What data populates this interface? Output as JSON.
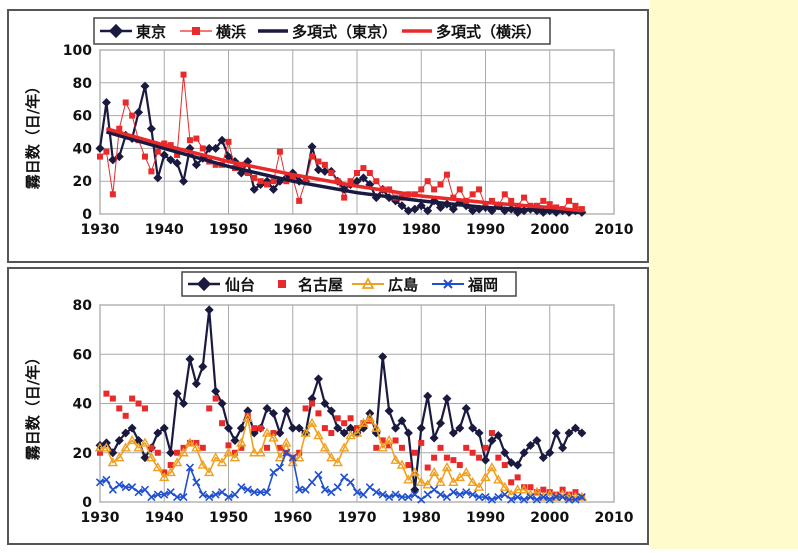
{
  "colors": {
    "tokyo": "#1a1a40",
    "yokohama": "#e82a2a",
    "sendai": "#1a1a40",
    "nagoya": "#e82a2a",
    "hiroshima": "#f0a020",
    "fukuoka": "#2050d0",
    "side_panel": "#fffbcc"
  },
  "chart_data": [
    {
      "type": "line",
      "ylabel": "霧日数（日/年）",
      "xlim": [
        1930,
        2010
      ],
      "ylim": [
        0,
        100
      ],
      "xticks": [
        "1930",
        "1940",
        "1950",
        "1960",
        "1970",
        "1980",
        "1990",
        "2000",
        "2010"
      ],
      "yticks": [
        "0",
        "20",
        "40",
        "60",
        "80",
        "100"
      ],
      "grid": true,
      "legend_position": "top",
      "legend": [
        "東京",
        "横浜",
        "多項式（東京）",
        "多項式（横浜）"
      ],
      "x": [
        1930,
        1931,
        1932,
        1933,
        1934,
        1935,
        1936,
        1937,
        1938,
        1939,
        1940,
        1941,
        1942,
        1943,
        1944,
        1945,
        1946,
        1947,
        1948,
        1949,
        1950,
        1951,
        1952,
        1953,
        1954,
        1955,
        1956,
        1957,
        1958,
        1959,
        1960,
        1961,
        1962,
        1963,
        1964,
        1965,
        1966,
        1967,
        1968,
        1969,
        1970,
        1971,
        1972,
        1973,
        1974,
        1975,
        1976,
        1977,
        1978,
        1979,
        1980,
        1981,
        1982,
        1983,
        1984,
        1985,
        1986,
        1987,
        1988,
        1989,
        1990,
        1991,
        1992,
        1993,
        1994,
        1995,
        1996,
        1997,
        1998,
        1999,
        2000,
        2001,
        2002,
        2003,
        2004,
        2005
      ],
      "series": [
        {
          "name": "東京",
          "marker": "diamond",
          "line": true,
          "values": [
            40,
            68,
            33,
            35,
            48,
            46,
            62,
            78,
            52,
            22,
            36,
            33,
            31,
            20,
            40,
            30,
            34,
            40,
            40,
            45,
            35,
            32,
            25,
            32,
            15,
            18,
            20,
            15,
            20,
            22,
            25,
            20,
            20,
            41,
            27,
            26,
            26,
            20,
            15,
            18,
            20,
            22,
            18,
            10,
            15,
            10,
            8,
            5,
            2,
            3,
            5,
            2,
            8,
            4,
            6,
            3,
            7,
            5,
            2,
            3,
            4,
            2,
            5,
            2,
            3,
            1,
            2,
            3,
            2,
            1,
            2,
            1,
            2,
            1,
            2,
            1
          ]
        },
        {
          "name": "横浜",
          "marker": "square",
          "line": "thin",
          "values": [
            35,
            38,
            12,
            52,
            68,
            60,
            45,
            35,
            26,
            38,
            43,
            42,
            36,
            85,
            45,
            46,
            40,
            32,
            30,
            30,
            44,
            28,
            30,
            25,
            22,
            20,
            18,
            20,
            38,
            20,
            22,
            8,
            20,
            35,
            32,
            30,
            25,
            20,
            10,
            20,
            25,
            28,
            25,
            20,
            15,
            15,
            10,
            10,
            12,
            12,
            15,
            20,
            15,
            18,
            24,
            10,
            15,
            8,
            12,
            15,
            5,
            8,
            5,
            12,
            8,
            5,
            10,
            5,
            5,
            8,
            6,
            4,
            3,
            8,
            5,
            3
          ]
        },
        {
          "name": "多項式（東京）",
          "type": "trend",
          "line": "thick",
          "x": [
            1931,
            1940,
            1950,
            1960,
            1970,
            1980,
            1990,
            2000,
            2005
          ],
          "values": [
            50,
            40,
            29,
            20,
            13,
            8,
            4,
            2,
            1
          ]
        },
        {
          "name": "多項式（横浜）",
          "type": "trend",
          "line": "thick",
          "x": [
            1931,
            1940,
            1950,
            1960,
            1970,
            1980,
            1990,
            2000,
            2005
          ],
          "values": [
            52,
            42,
            32,
            24,
            17,
            11,
            7,
            4,
            2
          ]
        }
      ]
    },
    {
      "type": "line",
      "ylabel": "霧日数（日/年）",
      "xlim": [
        1930,
        2010
      ],
      "ylim": [
        0,
        80
      ],
      "xticks": [
        "1930",
        "1940",
        "1950",
        "1960",
        "1970",
        "1980",
        "1990",
        "2000",
        "2010"
      ],
      "yticks": [
        "0",
        "20",
        "40",
        "60",
        "80"
      ],
      "grid": true,
      "legend_position": "top",
      "legend": [
        "仙台",
        "名古屋",
        "広島",
        "福岡"
      ],
      "x": [
        1930,
        1931,
        1932,
        1933,
        1934,
        1935,
        1936,
        1937,
        1938,
        1939,
        1940,
        1941,
        1942,
        1943,
        1944,
        1945,
        1946,
        1947,
        1948,
        1949,
        1950,
        1951,
        1952,
        1953,
        1954,
        1955,
        1956,
        1957,
        1958,
        1959,
        1960,
        1961,
        1962,
        1963,
        1964,
        1965,
        1966,
        1967,
        1968,
        1969,
        1970,
        1971,
        1972,
        1973,
        1974,
        1975,
        1976,
        1977,
        1978,
        1979,
        1980,
        1981,
        1982,
        1983,
        1984,
        1985,
        1986,
        1987,
        1988,
        1989,
        1990,
        1991,
        1992,
        1993,
        1994,
        1995,
        1996,
        1997,
        1998,
        1999,
        2000,
        2001,
        2002,
        2003,
        2004,
        2005
      ],
      "series": [
        {
          "name": "仙台",
          "marker": "diamond",
          "line": true,
          "values": [
            23,
            24,
            20,
            25,
            28,
            30,
            25,
            18,
            22,
            28,
            30,
            20,
            44,
            40,
            58,
            48,
            55,
            78,
            45,
            40,
            30,
            25,
            30,
            37,
            28,
            30,
            38,
            36,
            28,
            37,
            30,
            30,
            28,
            42,
            50,
            40,
            37,
            30,
            28,
            30,
            28,
            30,
            36,
            28,
            59,
            37,
            30,
            33,
            28,
            5,
            30,
            43,
            26,
            32,
            42,
            28,
            30,
            38,
            30,
            28,
            17,
            25,
            27,
            20,
            16,
            15,
            20,
            23,
            25,
            18,
            20,
            28,
            22,
            28,
            30,
            28
          ]
        },
        {
          "name": "名古屋",
          "marker": "square",
          "line": false,
          "values": [
            20,
            44,
            42,
            38,
            35,
            42,
            40,
            38,
            22,
            20,
            12,
            15,
            20,
            22,
            24,
            24,
            22,
            38,
            42,
            32,
            23,
            20,
            22,
            35,
            30,
            30,
            22,
            28,
            22,
            20,
            18,
            20,
            38,
            40,
            36,
            30,
            28,
            34,
            32,
            34,
            30,
            32,
            33,
            22,
            25,
            23,
            25,
            22,
            15,
            20,
            24,
            14,
            18,
            22,
            18,
            17,
            15,
            22,
            20,
            18,
            22,
            28,
            18,
            15,
            8,
            10,
            6,
            6,
            4,
            5,
            4,
            3,
            5,
            3,
            4,
            2
          ]
        },
        {
          "name": "広島",
          "marker": "triangle",
          "line": true,
          "values": [
            22,
            22,
            16,
            18,
            22,
            25,
            22,
            24,
            18,
            14,
            10,
            12,
            16,
            20,
            24,
            22,
            15,
            12,
            18,
            16,
            20,
            18,
            24,
            34,
            20,
            20,
            28,
            26,
            18,
            24,
            16,
            18,
            28,
            32,
            27,
            22,
            18,
            16,
            22,
            27,
            28,
            32,
            34,
            30,
            22,
            25,
            17,
            15,
            9,
            12,
            8,
            7,
            12,
            8,
            14,
            8,
            10,
            12,
            8,
            6,
            10,
            14,
            9,
            6,
            3,
            5,
            5,
            3,
            4,
            2,
            3,
            2,
            3,
            2,
            2,
            2
          ]
        },
        {
          "name": "福岡",
          "marker": "x",
          "line": true,
          "values": [
            8,
            9,
            5,
            7,
            6,
            6,
            4,
            5,
            2,
            3,
            3,
            4,
            2,
            2,
            14,
            8,
            3,
            2,
            3,
            4,
            2,
            3,
            6,
            5,
            4,
            4,
            4,
            12,
            14,
            20,
            18,
            5,
            5,
            8,
            11,
            5,
            4,
            6,
            10,
            8,
            4,
            3,
            6,
            4,
            3,
            2,
            3,
            2,
            2,
            3,
            1,
            3,
            5,
            3,
            2,
            4,
            3,
            4,
            3,
            2,
            2,
            1,
            2,
            3,
            1,
            2,
            1,
            2,
            1,
            2,
            1,
            2,
            2,
            1,
            1,
            2
          ]
        }
      ]
    }
  ]
}
